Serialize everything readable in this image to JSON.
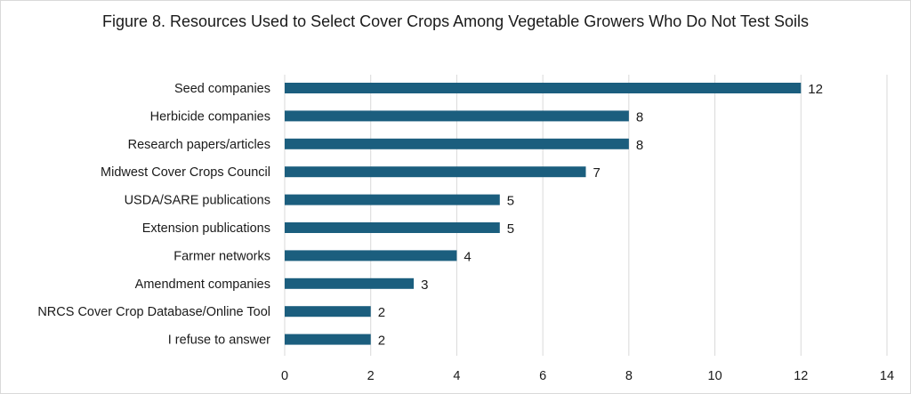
{
  "chart_data": {
    "type": "bar",
    "orientation": "horizontal",
    "title": "Figure 8. Resources Used to Select Cover Crops Among Vegetable Growers Who Do Not Test Soils",
    "categories": [
      "Seed companies",
      "Herbicide companies",
      "Research papers/articles",
      "Midwest Cover Crops Council",
      "USDA/SARE publications",
      "Extension publications",
      "Farmer networks",
      "Amendment companies",
      "NRCS Cover Crop Database/Online Tool",
      "I refuse to answer"
    ],
    "values": [
      12,
      8,
      8,
      7,
      5,
      5,
      4,
      3,
      2,
      2
    ],
    "xlim": [
      0,
      14
    ],
    "xticks": [
      0,
      2,
      4,
      6,
      8,
      10,
      12,
      14
    ],
    "xlabel": "",
    "ylabel": "",
    "grid": "vertical",
    "legend": "none",
    "bar_color": "#1b5e7e",
    "grid_color": "#d9d9d9"
  }
}
